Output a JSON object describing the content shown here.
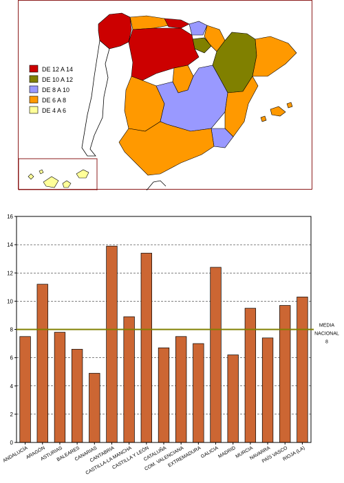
{
  "map": {
    "legend": [
      {
        "label": "DE 12 A 14",
        "color": "#cc0000"
      },
      {
        "label": "DE 10 A 12",
        "color": "#808000"
      },
      {
        "label": "DE   8 A 10",
        "color": "#9999ff"
      },
      {
        "label": "DE   6 A  8",
        "color": "#ff9900"
      },
      {
        "label": "DE   4 A  6",
        "color": "#ffff99"
      }
    ]
  },
  "chart_data": {
    "type": "bar",
    "categories": [
      "ANDALUCÍA",
      "ARAGÓN",
      "ASTURIAS",
      "BALEARES",
      "CANARIAS",
      "CANTABRIA",
      "CASTILLA-LA MANCHA",
      "CASTILLA Y LEÓN",
      "CATALUÑA",
      "COM. VALENCIANA",
      "EXTREMADURA",
      "GALICIA",
      "MADRID",
      "MURCIA",
      "NAVARRA",
      "PAÍS VASCO",
      "RIOJA (LA)"
    ],
    "values": [
      7.5,
      11.2,
      7.8,
      6.6,
      4.9,
      13.9,
      8.9,
      13.4,
      6.7,
      7.5,
      7.0,
      12.4,
      6.2,
      9.5,
      7.4,
      9.7,
      10.3
    ],
    "ylim": [
      0,
      16
    ],
    "yticks": [
      0,
      2,
      4,
      6,
      8,
      10,
      12,
      14,
      16
    ],
    "grid": true,
    "bar_color": "#cc6633",
    "reference_line": {
      "value": 8,
      "color": "#808000",
      "label_line1": "MEDIA",
      "label_line2": "NACIONAL",
      "label_value": "8"
    }
  }
}
